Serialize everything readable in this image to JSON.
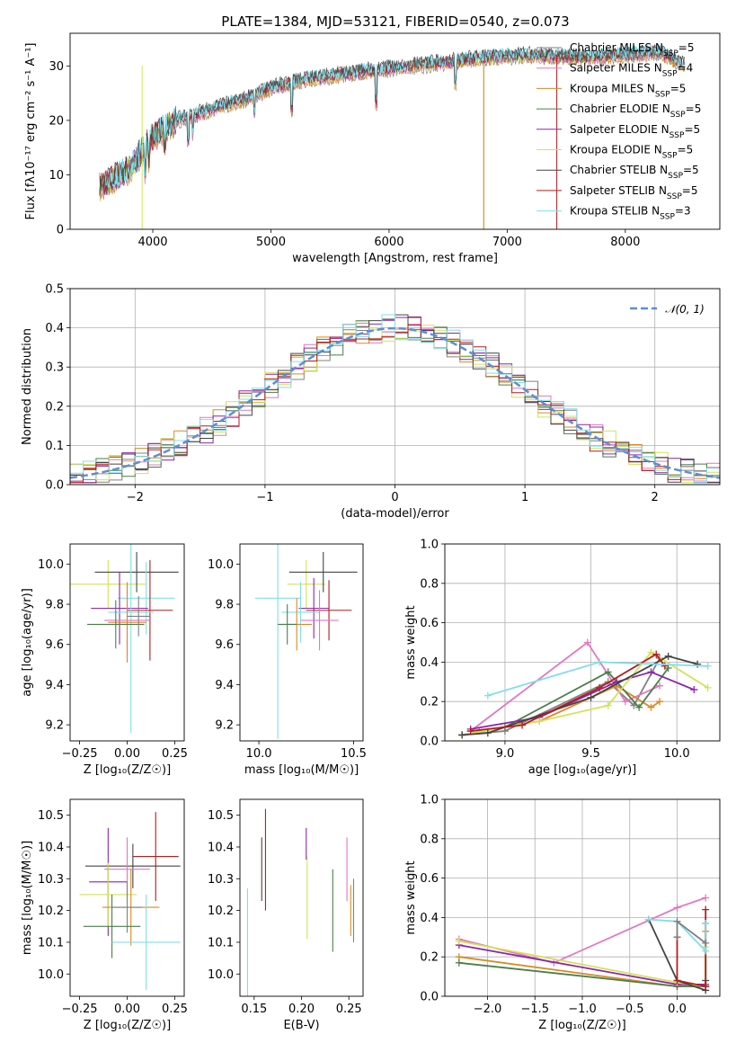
{
  "title": "PLATE=1384, MJD=53121, FIBERID=0540, z=0.073",
  "colors": {
    "chabrier_miles": "#808080",
    "salpeter_miles": "#e377c2",
    "kroupa_miles": "#d98a22",
    "chabrier_elodie": "#4a7f4a",
    "salpeter_elodie": "#8e24aa",
    "kroupa_elodie": "#d4e157",
    "chabrier_stelib": "#444444",
    "salpeter_stelib": "#b71c1c",
    "kroupa_stelib": "#80deea",
    "normal_curve": "#5b8fd6"
  },
  "legend_main": [
    {
      "name": "Chabrier MILES",
      "nssp": "=5",
      "color": "#808080"
    },
    {
      "name": "Salpeter MILES",
      "nssp": "=4",
      "color": "#e377c2"
    },
    {
      "name": "Kroupa MILES",
      "nssp": "=5",
      "color": "#d98a22"
    },
    {
      "name": "Chabrier ELODIE",
      "nssp": "=5",
      "color": "#4a7f4a"
    },
    {
      "name": "Salpeter ELODIE",
      "nssp": "=5",
      "color": "#8e24aa"
    },
    {
      "name": "Kroupa ELODIE",
      "nssp": "=5",
      "color": "#d4e157"
    },
    {
      "name": "Chabrier STELIB",
      "nssp": "=5",
      "color": "#444444"
    },
    {
      "name": "Salpeter STELIB",
      "nssp": "=5",
      "color": "#b71c1c"
    },
    {
      "name": "Kroupa STELIB",
      "nssp": "=3",
      "color": "#80deea"
    }
  ],
  "chart_data": [
    {
      "id": "spectrum",
      "type": "line",
      "title": "PLATE=1384, MJD=53121, FIBERID=0540, z=0.073",
      "xlabel": "wavelength [Angstrom, rest frame]",
      "ylabel": "Flux [fλ10⁻¹⁷ erg cm⁻² s⁻¹ A⁻¹]",
      "xlim": [
        3300,
        8800
      ],
      "ylim": [
        0,
        36
      ],
      "xticks": [
        4000,
        5000,
        6000,
        7000,
        8000
      ],
      "yticks": [
        0,
        10,
        20,
        30
      ],
      "legend": "top-right",
      "continuum": {
        "x": [
          3550,
          3800,
          4000,
          4200,
          4500,
          4800,
          5000,
          5300,
          5600,
          6000,
          6400,
          6800,
          7200,
          7600,
          8000,
          8300,
          8500
        ],
        "y": [
          8,
          11,
          17,
          20,
          22,
          24,
          26,
          27.5,
          28.5,
          29.5,
          30.5,
          31.5,
          32,
          31.5,
          32,
          32.5,
          30
        ]
      }
    },
    {
      "id": "residual_hist",
      "type": "bar",
      "xlabel": "(data-model)/error",
      "ylabel": "Normed distribution",
      "xlim": [
        -2.5,
        2.5
      ],
      "ylim": [
        0,
        0.5
      ],
      "xticks": [
        -2,
        -1,
        0,
        1,
        2
      ],
      "yticks": [
        0.0,
        0.1,
        0.2,
        0.3,
        0.4,
        0.5
      ],
      "legend": "top-right",
      "legend_label": "𝒩(0, 1)",
      "bin_width": 0.1,
      "bin_start": -2.5,
      "grid": true
    },
    {
      "id": "age_vs_Z",
      "type": "scatter",
      "xlabel": "Z [log₁₀(Z/Z☉)]",
      "ylabel": "age  [log₁₀(age/yr)]",
      "xlim": [
        -0.3,
        0.3
      ],
      "ylim": [
        9.12,
        10.1
      ],
      "xticks": [
        -0.25,
        0.0,
        0.25
      ],
      "yticks": [
        9.2,
        9.4,
        9.6,
        9.8,
        10.0
      ],
      "points": [
        {
          "c": "kroupa_elodie",
          "x": -0.1,
          "y": 9.9,
          "xe": 0.2,
          "ye": 0.12
        },
        {
          "c": "chabrier_stelib",
          "x": 0.05,
          "y": 9.96,
          "xe": 0.22,
          "ye": 0.1
        },
        {
          "c": "kroupa_stelib",
          "x": 0.1,
          "y": 9.83,
          "xe": 0.15,
          "ye": 0.18
        },
        {
          "c": "salpeter_elodie",
          "x": -0.04,
          "y": 9.78,
          "xe": 0.15,
          "ye": 0.18
        },
        {
          "c": "salpeter_stelib",
          "x": 0.12,
          "y": 9.77,
          "xe": 0.12,
          "ye": 0.25
        },
        {
          "c": "kroupa_stelib",
          "x": 0.02,
          "y": 9.76,
          "xe": 0.12,
          "ye": 0.6
        },
        {
          "c": "salpeter_miles",
          "x": 0.0,
          "y": 9.72,
          "xe": 0.12,
          "ye": 0.18
        },
        {
          "c": "kroupa_miles",
          "x": 0.0,
          "y": 9.71,
          "xe": 0.1,
          "ye": 0.2
        },
        {
          "c": "chabrier_elodie",
          "x": -0.06,
          "y": 9.7,
          "xe": 0.15,
          "ye": 0.12
        },
        {
          "c": "chabrier_miles",
          "x": 0.06,
          "y": 9.74,
          "xe": 0.06,
          "ye": 0.1
        }
      ]
    },
    {
      "id": "age_vs_mass",
      "type": "scatter",
      "xlabel": "mass [log₁₀(M/M☉)]",
      "ylabel": "",
      "xlim": [
        9.9,
        10.55
      ],
      "ylim": [
        9.12,
        10.1
      ],
      "xticks": [
        10.0,
        10.5
      ],
      "yticks": [
        9.2,
        9.4,
        9.6,
        9.8,
        10.0
      ],
      "points": [
        {
          "c": "kroupa_elodie",
          "x": 10.25,
          "y": 9.9,
          "xe": 0.1,
          "ye": 0.12
        },
        {
          "c": "chabrier_stelib",
          "x": 10.34,
          "y": 9.96,
          "xe": 0.18,
          "ye": 0.1
        },
        {
          "c": "kroupa_stelib",
          "x": 10.1,
          "y": 9.83,
          "xe": 0.12,
          "ye": 0.7
        },
        {
          "c": "salpeter_elodie",
          "x": 10.29,
          "y": 9.78,
          "xe": 0.08,
          "ye": 0.15
        },
        {
          "c": "salpeter_stelib",
          "x": 10.37,
          "y": 9.77,
          "xe": 0.12,
          "ye": 0.15
        },
        {
          "c": "kroupa_stelib",
          "x": 10.22,
          "y": 9.76,
          "xe": 0.1,
          "ye": 0.15
        },
        {
          "c": "salpeter_miles",
          "x": 10.32,
          "y": 9.72,
          "xe": 0.1,
          "ye": 0.15
        },
        {
          "c": "kroupa_miles",
          "x": 10.2,
          "y": 9.7,
          "xe": 0.08,
          "ye": 0.13
        },
        {
          "c": "chabrier_elodie",
          "x": 10.15,
          "y": 9.7,
          "xe": 0.05,
          "ye": 0.1
        }
      ]
    },
    {
      "id": "massweight_vs_age",
      "type": "line",
      "xlabel": "age  [log₁₀(age/yr)]",
      "ylabel": "mass weight",
      "xlim": [
        8.65,
        10.25
      ],
      "ylim": [
        0,
        1
      ],
      "xticks": [
        9.0,
        9.5,
        10.0
      ],
      "yticks": [
        0.0,
        0.2,
        0.4,
        0.6,
        0.8,
        1.0
      ],
      "grid": true,
      "series": [
        {
          "c": "chabrier_miles",
          "x": [
            8.75,
            9.0,
            9.6,
            9.75,
            9.9
          ],
          "y": [
            0.03,
            0.05,
            0.3,
            0.18,
            0.42
          ]
        },
        {
          "c": "salpeter_miles",
          "x": [
            8.8,
            9.48,
            9.7,
            9.9
          ],
          "y": [
            0.05,
            0.5,
            0.2,
            0.28
          ]
        },
        {
          "c": "kroupa_miles",
          "x": [
            8.85,
            9.2,
            9.65,
            9.85,
            9.9
          ],
          "y": [
            0.05,
            0.1,
            0.28,
            0.17,
            0.2
          ]
        },
        {
          "c": "chabrier_elodie",
          "x": [
            8.75,
            9.0,
            9.6,
            9.78,
            9.95
          ],
          "y": [
            0.03,
            0.07,
            0.35,
            0.17,
            0.37
          ]
        },
        {
          "c": "salpeter_elodie",
          "x": [
            8.8,
            9.2,
            9.65,
            9.85,
            10.1
          ],
          "y": [
            0.06,
            0.12,
            0.3,
            0.35,
            0.26
          ]
        },
        {
          "c": "kroupa_elodie",
          "x": [
            8.75,
            9.2,
            9.6,
            9.85,
            10.18
          ],
          "y": [
            0.03,
            0.1,
            0.18,
            0.45,
            0.27
          ]
        },
        {
          "c": "chabrier_stelib",
          "x": [
            8.75,
            8.9,
            9.5,
            9.95,
            10.12
          ],
          "y": [
            0.03,
            0.04,
            0.22,
            0.43,
            0.39
          ]
        },
        {
          "c": "salpeter_stelib",
          "x": [
            8.8,
            9.1,
            9.55,
            9.88,
            9.93
          ],
          "y": [
            0.05,
            0.08,
            0.27,
            0.44,
            0.38
          ]
        },
        {
          "c": "kroupa_stelib",
          "x": [
            8.9,
            9.55,
            10.18
          ],
          "y": [
            0.23,
            0.4,
            0.38
          ]
        }
      ]
    },
    {
      "id": "mass_vs_Z",
      "type": "scatter",
      "xlabel": "Z [log₁₀(Z/Z☉)]",
      "ylabel": "mass [log₁₀(M/M☉)]",
      "xlim": [
        -0.3,
        0.3
      ],
      "ylim": [
        9.93,
        10.55
      ],
      "xticks": [
        -0.25,
        0.0,
        0.25
      ],
      "yticks": [
        10.0,
        10.1,
        10.2,
        10.3,
        10.4,
        10.5
      ],
      "points": [
        {
          "c": "salpeter_stelib",
          "x": 0.15,
          "y": 10.37,
          "xe": 0.12,
          "ye": 0.14
        },
        {
          "c": "chabrier_stelib",
          "x": 0.03,
          "y": 10.34,
          "xe": 0.25,
          "ye": 0.07
        },
        {
          "c": "salpeter_miles",
          "x": 0.0,
          "y": 10.33,
          "xe": 0.12,
          "ye": 0.1
        },
        {
          "c": "salpeter_elodie",
          "x": -0.1,
          "y": 10.29,
          "xe": 0.1,
          "ye": 0.17
        },
        {
          "c": "kroupa_elodie",
          "x": -0.1,
          "y": 10.25,
          "xe": 0.15,
          "ye": 0.1
        },
        {
          "c": "kroupa_miles",
          "x": 0.02,
          "y": 10.21,
          "xe": 0.15,
          "ye": 0.12
        },
        {
          "c": "chabrier_miles",
          "x": 0.0,
          "y": 10.21,
          "xe": 0.08,
          "ye": 0.08
        },
        {
          "c": "chabrier_elodie",
          "x": -0.08,
          "y": 10.15,
          "xe": 0.15,
          "ye": 0.1
        },
        {
          "c": "kroupa_stelib",
          "x": 0.1,
          "y": 10.1,
          "xe": 0.18,
          "ye": 0.15
        }
      ]
    },
    {
      "id": "mass_vs_ebv",
      "type": "scatter",
      "xlabel": "E(B-V)",
      "ylabel": "",
      "xlim": [
        0.135,
        0.265
      ],
      "ylim": [
        9.93,
        10.55
      ],
      "xticks": [
        0.15,
        0.2,
        0.25
      ],
      "yticks": [
        10.0,
        10.1,
        10.2,
        10.3,
        10.4,
        10.5
      ],
      "points": [
        {
          "c": "kroupa_stelib",
          "x": 0.143,
          "y": 10.1,
          "xe": 0,
          "ye": 0.17
        },
        {
          "c": "chabrier_stelib",
          "x": 0.158,
          "y": 10.33,
          "xe": 0,
          "ye": 0.1
        },
        {
          "c": "salpeter_stelib",
          "x": 0.162,
          "y": 10.36,
          "xe": 0,
          "ye": 0.16
        },
        {
          "c": "salpeter_elodie",
          "x": 0.205,
          "y": 10.41,
          "xe": 0,
          "ye": 0.05
        },
        {
          "c": "kroupa_elodie",
          "x": 0.206,
          "y": 10.24,
          "xe": 0,
          "ye": 0.13
        },
        {
          "c": "chabrier_elodie",
          "x": 0.233,
          "y": 10.2,
          "xe": 0,
          "ye": 0.13
        },
        {
          "c": "salpeter_miles",
          "x": 0.248,
          "y": 10.33,
          "xe": 0,
          "ye": 0.1
        },
        {
          "c": "kroupa_miles",
          "x": 0.252,
          "y": 10.2,
          "xe": 0,
          "ye": 0.08
        },
        {
          "c": "chabrier_miles",
          "x": 0.255,
          "y": 10.2,
          "xe": 0,
          "ye": 0.1
        }
      ]
    },
    {
      "id": "massweight_vs_Z",
      "type": "line",
      "xlabel": "Z [log₁₀(Z/Z☉)]",
      "ylabel": "mass weight",
      "xlim": [
        -2.45,
        0.45
      ],
      "ylim": [
        0,
        1
      ],
      "xticks": [
        -2.0,
        -1.5,
        -1.0,
        -0.5,
        0.0
      ],
      "yticks": [
        0.0,
        0.2,
        0.4,
        0.6,
        0.8,
        1.0
      ],
      "grid": true,
      "series": [
        {
          "c": "salpeter_miles",
          "x": [
            -2.3,
            -1.3,
            0.0,
            0.3
          ],
          "y": [
            0.29,
            0.17,
            0.45,
            0.5
          ]
        },
        {
          "c": "kroupa_miles",
          "x": [
            -2.3,
            0.0,
            0.3,
            0.3
          ],
          "y": [
            0.2,
            0.05,
            0.05,
            0.33
          ]
        },
        {
          "c": "chabrier_elodie",
          "x": [
            -2.3,
            0.0,
            0.3,
            0.3
          ],
          "y": [
            0.17,
            0.05,
            0.05,
            0.37
          ]
        },
        {
          "c": "salpeter_elodie",
          "x": [
            -2.3,
            0.0,
            0.3
          ],
          "y": [
            0.26,
            0.06,
            0.06
          ]
        },
        {
          "c": "kroupa_elodie",
          "x": [
            -2.3,
            0.0,
            0.3,
            0.3
          ],
          "y": [
            0.28,
            0.07,
            0.05,
            0.25
          ]
        },
        {
          "c": "chabrier_stelib",
          "x": [
            -0.3,
            0.0,
            0.3,
            0.3
          ],
          "y": [
            0.39,
            0.08,
            0.03,
            0.08
          ]
        },
        {
          "c": "salpeter_stelib",
          "x": [
            0.0,
            0.0,
            0.3,
            0.3
          ],
          "y": [
            0.3,
            0.08,
            0.05,
            0.44
          ]
        },
        {
          "c": "kroupa_stelib",
          "x": [
            -0.3,
            0.0,
            0.3,
            0.3
          ],
          "y": [
            0.39,
            0.38,
            0.23,
            0.37
          ]
        },
        {
          "c": "chabrier_miles",
          "x": [
            0.0,
            0.0,
            0.3
          ],
          "y": [
            0.3,
            0.38,
            0.27
          ]
        }
      ]
    }
  ]
}
